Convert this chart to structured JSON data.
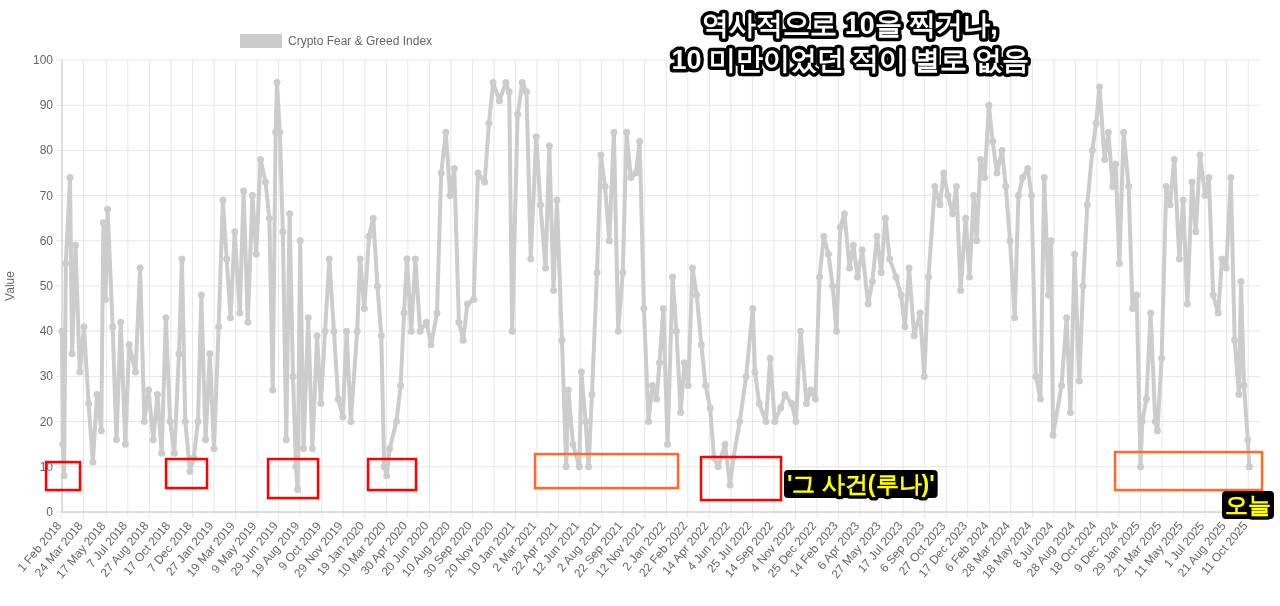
{
  "chart_data": {
    "type": "line",
    "ylabel": "Value",
    "ylim": [
      0,
      100
    ],
    "yticks": [
      0,
      10,
      20,
      30,
      40,
      50,
      60,
      70,
      80,
      90,
      100
    ],
    "xlim": [
      "2018-02-01",
      "2025-11-08"
    ],
    "xticks": [
      {
        "value": "2018-02-01",
        "label": "1 Feb 2018"
      },
      {
        "value": "2018-03-24",
        "label": "24 Mar 2018"
      },
      {
        "value": "2018-05-17",
        "label": "17 May 2018"
      },
      {
        "value": "2018-07-07",
        "label": "7 Jul 2018"
      },
      {
        "value": "2018-08-27",
        "label": "27 Aug 2018"
      },
      {
        "value": "2018-10-17",
        "label": "17 Oct 2018"
      },
      {
        "value": "2018-12-07",
        "label": "7 Dec 2018"
      },
      {
        "value": "2019-01-27",
        "label": "27 Jan 2019"
      },
      {
        "value": "2019-03-19",
        "label": "19 Mar 2019"
      },
      {
        "value": "2019-05-09",
        "label": "9 May 2019"
      },
      {
        "value": "2019-06-29",
        "label": "29 Jun 2019"
      },
      {
        "value": "2019-08-19",
        "label": "19 Aug 2019"
      },
      {
        "value": "2019-10-09",
        "label": "9 Oct 2019"
      },
      {
        "value": "2019-11-29",
        "label": "29 Nov 2019"
      },
      {
        "value": "2020-01-19",
        "label": "19 Jan 2020"
      },
      {
        "value": "2020-03-10",
        "label": "10 Mar 2020"
      },
      {
        "value": "2020-04-30",
        "label": "30 Apr 2020"
      },
      {
        "value": "2020-06-20",
        "label": "20 Jun 2020"
      },
      {
        "value": "2020-08-10",
        "label": "10 Aug 2020"
      },
      {
        "value": "2020-09-30",
        "label": "30 Sep 2020"
      },
      {
        "value": "2020-11-20",
        "label": "20 Nov 2020"
      },
      {
        "value": "2021-01-10",
        "label": "10 Jan 2021"
      },
      {
        "value": "2021-03-02",
        "label": "2 Mar 2021"
      },
      {
        "value": "2021-04-22",
        "label": "22 Apr 2021"
      },
      {
        "value": "2021-06-12",
        "label": "12 Jun 2021"
      },
      {
        "value": "2021-08-02",
        "label": "2 Aug 2021"
      },
      {
        "value": "2021-09-22",
        "label": "22 Sep 2021"
      },
      {
        "value": "2021-11-12",
        "label": "12 Nov 2021"
      },
      {
        "value": "2022-01-02",
        "label": "2 Jan 2022"
      },
      {
        "value": "2022-02-22",
        "label": "22 Feb 2022"
      },
      {
        "value": "2022-04-14",
        "label": "14 Apr 2022"
      },
      {
        "value": "2022-06-04",
        "label": "4 Jun 2022"
      },
      {
        "value": "2022-07-25",
        "label": "25 Jul 2022"
      },
      {
        "value": "2022-09-14",
        "label": "14 Sep 2022"
      },
      {
        "value": "2022-11-04",
        "label": "4 Nov 2022"
      },
      {
        "value": "2022-12-25",
        "label": "25 Dec 2022"
      },
      {
        "value": "2023-02-14",
        "label": "14 Feb 2023"
      },
      {
        "value": "2023-04-06",
        "label": "6 Apr 2023"
      },
      {
        "value": "2023-05-27",
        "label": "27 May 2023"
      },
      {
        "value": "2023-07-17",
        "label": "17 Jul 2023"
      },
      {
        "value": "2023-09-06",
        "label": "6 Sep 2023"
      },
      {
        "value": "2023-10-27",
        "label": "27 Oct 2023"
      },
      {
        "value": "2023-12-17",
        "label": "17 Dec 2023"
      },
      {
        "value": "2024-02-06",
        "label": "6 Feb 2024"
      },
      {
        "value": "2024-03-28",
        "label": "28 Mar 2024"
      },
      {
        "value": "2024-05-18",
        "label": "18 May 2024"
      },
      {
        "value": "2024-07-08",
        "label": "8 Jul 2024"
      },
      {
        "value": "2024-08-28",
        "label": "28 Aug 2024"
      },
      {
        "value": "2024-10-18",
        "label": "18 Oct 2024"
      },
      {
        "value": "2024-12-09",
        "label": "9 Dec 2024"
      },
      {
        "value": "2025-01-29",
        "label": "29 Jan 2025"
      },
      {
        "value": "2025-03-21",
        "label": "21 Mar 2025"
      },
      {
        "value": "2025-05-11",
        "label": "11 May 2025"
      },
      {
        "value": "2025-07-01",
        "label": "1 Jul 2025"
      },
      {
        "value": "2025-08-21",
        "label": "21 Aug 2025"
      },
      {
        "value": "2025-10-11",
        "label": "11 Oct 2025"
      }
    ],
    "grid": true,
    "legend": "top",
    "marker": "circle",
    "line_style": "solid",
    "annotations": [
      "역사적으로 10을 찍거나,\n10 미만이었던 적이 별로 없음",
      "'그 사건(루나)'",
      "오늘"
    ],
    "series": [
      {
        "name": "Crypto Fear & Greed Index",
        "color": "#cccccc",
        "x": [
          "2018-02-01",
          "2018-02-03",
          "2018-02-06",
          "2018-02-10",
          "2018-02-20",
          "2018-02-25",
          "2018-03-05",
          "2018-03-15",
          "2018-03-25",
          "2018-04-05",
          "2018-04-15",
          "2018-04-25",
          "2018-05-05",
          "2018-05-10",
          "2018-05-15",
          "2018-05-20",
          "2018-06-01",
          "2018-06-10",
          "2018-06-20",
          "2018-07-01",
          "2018-07-10",
          "2018-07-25",
          "2018-08-05",
          "2018-08-15",
          "2018-08-25",
          "2018-09-05",
          "2018-09-15",
          "2018-09-25",
          "2018-10-05",
          "2018-10-15",
          "2018-10-25",
          "2018-11-05",
          "2018-11-12",
          "2018-11-20",
          "2018-12-01",
          "2018-12-10",
          "2018-12-20",
          "2018-12-28",
          "2019-01-07",
          "2019-01-17",
          "2019-01-27",
          "2019-02-07",
          "2019-02-17",
          "2019-02-26",
          "2019-03-07",
          "2019-03-17",
          "2019-03-29",
          "2019-04-07",
          "2019-04-17",
          "2019-04-28",
          "2019-05-07",
          "2019-05-17",
          "2019-05-29",
          "2019-06-07",
          "2019-06-15",
          "2019-06-22",
          "2019-06-25",
          "2019-07-02",
          "2019-07-09",
          "2019-07-17",
          "2019-07-25",
          "2019-08-02",
          "2019-08-09",
          "2019-08-13",
          "2019-08-19",
          "2019-08-27",
          "2019-09-07",
          "2019-09-17",
          "2019-09-28",
          "2019-10-07",
          "2019-10-17",
          "2019-10-27",
          "2019-11-07",
          "2019-11-17",
          "2019-11-28",
          "2019-12-07",
          "2019-12-17",
          "2020-01-01",
          "2020-01-08",
          "2020-01-18",
          "2020-01-29",
          "2020-02-08",
          "2020-02-18",
          "2020-02-27",
          "2020-03-05",
          "2020-03-11",
          "2020-03-18",
          "2020-04-03",
          "2020-04-13",
          "2020-04-21",
          "2020-04-28",
          "2020-05-08",
          "2020-05-18",
          "2020-05-29",
          "2020-06-13",
          "2020-06-24",
          "2020-07-08",
          "2020-07-18",
          "2020-07-29",
          "2020-08-08",
          "2020-08-18",
          "2020-08-29",
          "2020-09-08",
          "2020-09-18",
          "2020-10-03",
          "2020-10-13",
          "2020-10-29",
          "2020-11-08",
          "2020-11-18",
          "2020-12-03",
          "2020-12-18",
          "2020-12-26",
          "2021-01-02",
          "2021-01-15",
          "2021-01-26",
          "2021-02-05",
          "2021-02-15",
          "2021-02-28",
          "2021-03-10",
          "2021-03-22",
          "2021-03-31",
          "2021-04-10",
          "2021-04-18",
          "2021-04-30",
          "2021-05-10",
          "2021-05-15",
          "2021-05-26",
          "2021-06-10",
          "2021-06-15",
          "2021-06-25",
          "2021-07-02",
          "2021-07-10",
          "2021-07-22",
          "2021-07-31",
          "2021-08-10",
          "2021-08-20",
          "2021-08-31",
          "2021-09-10",
          "2021-09-21",
          "2021-09-30",
          "2021-10-10",
          "2021-10-22",
          "2021-10-31",
          "2021-11-10",
          "2021-11-21",
          "2021-11-30",
          "2021-12-10",
          "2021-12-17",
          "2021-12-26",
          "2022-01-05",
          "2022-01-17",
          "2022-01-26",
          "2022-02-05",
          "2022-02-14",
          "2022-02-23",
          "2022-03-05",
          "2022-03-15",
          "2022-03-26",
          "2022-04-05",
          "2022-04-16",
          "2022-04-25",
          "2022-05-05",
          "2022-05-21",
          "2022-06-02",
          "2022-06-10",
          "2022-06-25",
          "2022-07-10",
          "2022-07-26",
          "2022-07-31",
          "2022-08-10",
          "2022-08-26",
          "2022-09-05",
          "2022-09-16",
          "2022-09-30",
          "2022-10-10",
          "2022-10-26",
          "2022-11-05",
          "2022-11-16",
          "2022-11-30",
          "2022-12-10",
          "2022-12-21",
          "2022-12-31",
          "2023-01-10",
          "2023-01-21",
          "2023-01-31",
          "2023-02-09",
          "2023-02-18",
          "2023-02-28",
          "2023-03-12",
          "2023-03-21",
          "2023-03-31",
          "2023-04-11",
          "2023-04-25",
          "2023-05-05",
          "2023-05-16",
          "2023-05-26",
          "2023-06-05",
          "2023-06-15",
          "2023-06-30",
          "2023-07-12",
          "2023-07-21",
          "2023-07-31",
          "2023-08-12",
          "2023-08-26",
          "2023-09-05",
          "2023-09-15",
          "2023-09-30",
          "2023-10-12",
          "2023-10-21",
          "2023-10-31",
          "2023-11-11",
          "2023-11-20",
          "2023-11-30",
          "2023-12-12",
          "2023-12-21",
          "2023-12-31",
          "2024-01-07",
          "2024-01-16",
          "2024-01-26",
          "2024-02-05",
          "2024-02-14",
          "2024-02-24",
          "2024-03-07",
          "2024-03-16",
          "2024-03-26",
          "2024-04-06",
          "2024-04-15",
          "2024-04-25",
          "2024-05-07",
          "2024-05-16",
          "2024-05-26",
          "2024-06-06",
          "2024-06-15",
          "2024-06-25",
          "2024-07-01",
          "2024-07-06",
          "2024-07-26",
          "2024-08-07",
          "2024-08-16",
          "2024-08-26",
          "2024-09-06",
          "2024-09-15",
          "2024-09-25",
          "2024-10-07",
          "2024-10-16",
          "2024-10-24",
          "2024-11-05",
          "2024-11-14",
          "2024-11-24",
          "2024-12-01",
          "2024-12-10",
          "2024-12-20",
          "2025-01-01",
          "2025-01-10",
          "2025-01-20",
          "2025-01-29",
          "2025-02-02",
          "2025-02-12",
          "2025-02-22",
          "2025-03-05",
          "2025-03-10",
          "2025-03-20",
          "2025-03-31",
          "2025-04-09",
          "2025-04-19",
          "2025-05-01",
          "2025-05-10",
          "2025-05-20",
          "2025-05-31",
          "2025-06-09",
          "2025-06-19",
          "2025-07-01",
          "2025-07-10",
          "2025-07-20",
          "2025-08-01",
          "2025-08-10",
          "2025-08-20",
          "2025-08-31",
          "2025-09-09",
          "2025-09-19",
          "2025-09-24",
          "2025-10-01",
          "2025-10-10",
          "2025-10-14"
        ],
        "values": [
          40,
          15,
          8,
          55,
          74,
          35,
          59,
          31,
          41,
          24,
          11,
          26,
          18,
          64,
          47,
          67,
          41,
          16,
          42,
          15,
          37,
          31,
          54,
          20,
          27,
          16,
          26,
          13,
          43,
          20,
          13,
          35,
          56,
          20,
          9,
          12,
          20,
          48,
          16,
          35,
          14,
          41,
          69,
          56,
          43,
          62,
          44,
          71,
          42,
          70,
          57,
          78,
          73,
          65,
          27,
          84,
          95,
          84,
          62,
          16,
          66,
          30,
          10,
          5,
          60,
          14,
          43,
          14,
          39,
          24,
          40,
          56,
          40,
          25,
          21,
          40,
          20,
          40,
          56,
          45,
          61,
          65,
          50,
          39,
          10,
          8,
          14,
          20,
          28,
          44,
          56,
          40,
          56,
          40,
          42,
          37,
          44,
          75,
          84,
          70,
          76,
          42,
          38,
          46,
          47,
          75,
          73,
          86,
          95,
          91,
          95,
          93,
          40,
          88,
          95,
          93,
          56,
          83,
          68,
          54,
          81,
          49,
          69,
          38,
          10,
          27,
          15,
          10,
          31,
          20,
          10,
          26,
          53,
          79,
          72,
          60,
          84,
          40,
          53,
          84,
          74,
          75,
          82,
          45,
          20,
          28,
          25,
          33,
          45,
          15,
          52,
          40,
          22,
          33,
          28,
          54,
          48,
          37,
          28,
          23,
          12,
          10,
          15,
          6,
          12,
          20,
          30,
          45,
          31,
          24,
          20,
          34,
          20,
          23,
          26,
          24,
          20,
          40,
          24,
          27,
          25,
          52,
          61,
          57,
          50,
          40,
          63,
          66,
          54,
          59,
          52,
          58,
          46,
          51,
          61,
          53,
          65,
          56,
          52,
          48,
          41,
          54,
          39,
          44,
          30,
          52,
          72,
          68,
          75,
          70,
          66,
          72,
          49,
          65,
          52,
          70,
          60,
          78,
          74,
          90,
          82,
          75,
          80,
          72,
          60,
          43,
          70,
          74,
          76,
          70,
          30,
          25,
          74,
          48,
          60,
          17,
          28,
          43,
          22,
          57,
          29,
          50,
          68,
          80,
          86,
          94,
          78,
          84,
          72,
          77,
          55,
          84,
          72,
          45,
          48,
          10,
          20,
          25,
          44,
          20,
          18,
          34,
          72,
          68,
          78,
          56,
          69,
          46,
          73,
          62,
          79,
          70,
          74,
          48,
          44,
          56,
          54,
          74,
          38,
          26,
          51,
          28,
          16,
          10
        ]
      }
    ]
  }
}
